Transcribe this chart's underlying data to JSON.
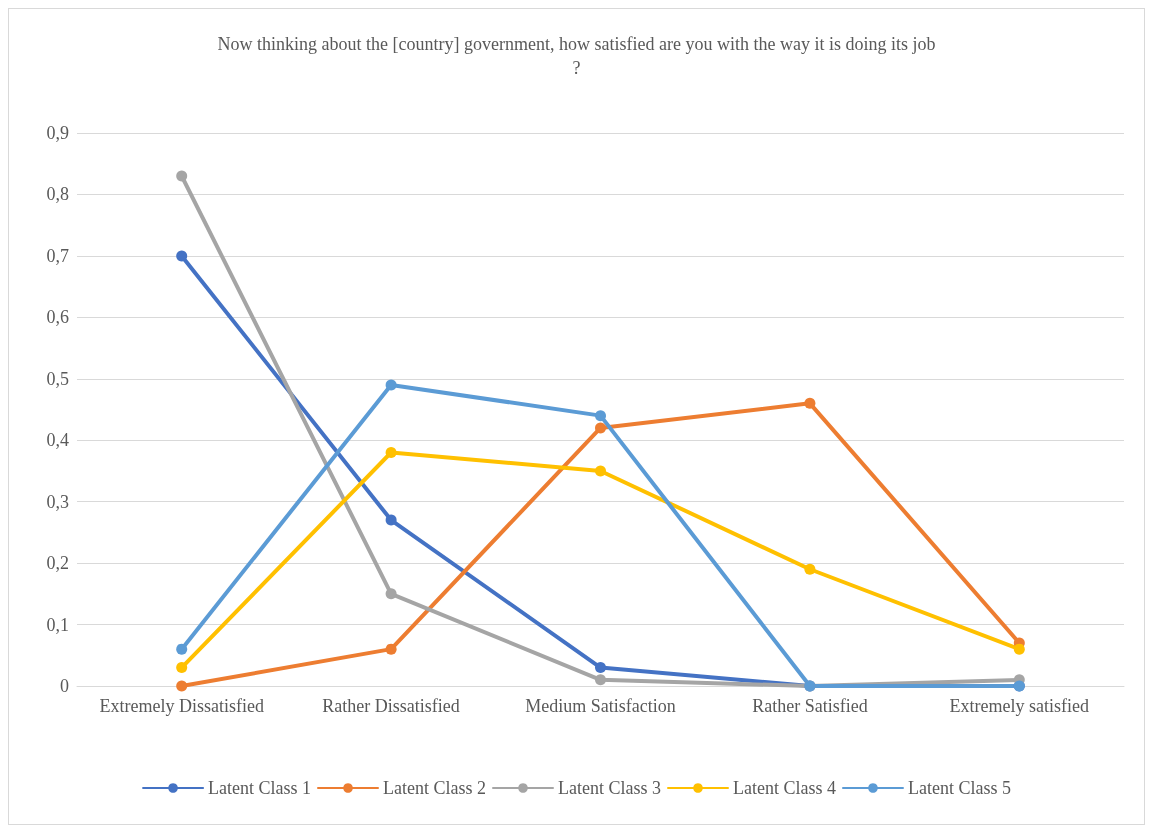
{
  "chart_data": {
    "type": "line",
    "title": "Now thinking about the [country] government, how satisfied are you with the way it is doing its job?",
    "categories": [
      "Extremely Dissatisfied",
      "Rather Dissatisfied",
      "Medium Satisfaction",
      "Rather Satisfied",
      "Extremely satisfied"
    ],
    "series": [
      {
        "name": "Latent Class 1",
        "color": "#4472c4",
        "values": [
          0.7,
          0.27,
          0.03,
          0.0,
          0.0
        ]
      },
      {
        "name": "Latent Class 2",
        "color": "#ed7d31",
        "values": [
          0.0,
          0.06,
          0.42,
          0.46,
          0.07
        ]
      },
      {
        "name": "Latent Class 3",
        "color": "#a5a5a5",
        "values": [
          0.83,
          0.15,
          0.01,
          0.0,
          0.01
        ]
      },
      {
        "name": "Latent Class 4",
        "color": "#ffc000",
        "values": [
          0.03,
          0.38,
          0.35,
          0.19,
          0.06
        ]
      },
      {
        "name": "Latent Class 5",
        "color": "#5b9bd5",
        "values": [
          0.06,
          0.49,
          0.44,
          0.0,
          0.0
        ]
      }
    ],
    "ylim": [
      0,
      0.9
    ],
    "yticks": [
      0,
      {
        "value": 0.1,
        "label": "0,1"
      },
      {
        "value": 0.2,
        "label": "0,2"
      },
      {
        "value": 0.3,
        "label": "0,3"
      },
      {
        "value": 0.4,
        "label": "0,4"
      },
      {
        "value": 0.5,
        "label": "0,5"
      },
      {
        "value": 0.6,
        "label": "0,6"
      },
      {
        "value": 0.7,
        "label": "0,7"
      },
      {
        "value": 0.8,
        "label": "0,8"
      },
      {
        "value": 0.9,
        "label": "0,9"
      }
    ],
    "grid": "y",
    "legend": "bottom",
    "marker": "circle",
    "line_style": "solid"
  }
}
